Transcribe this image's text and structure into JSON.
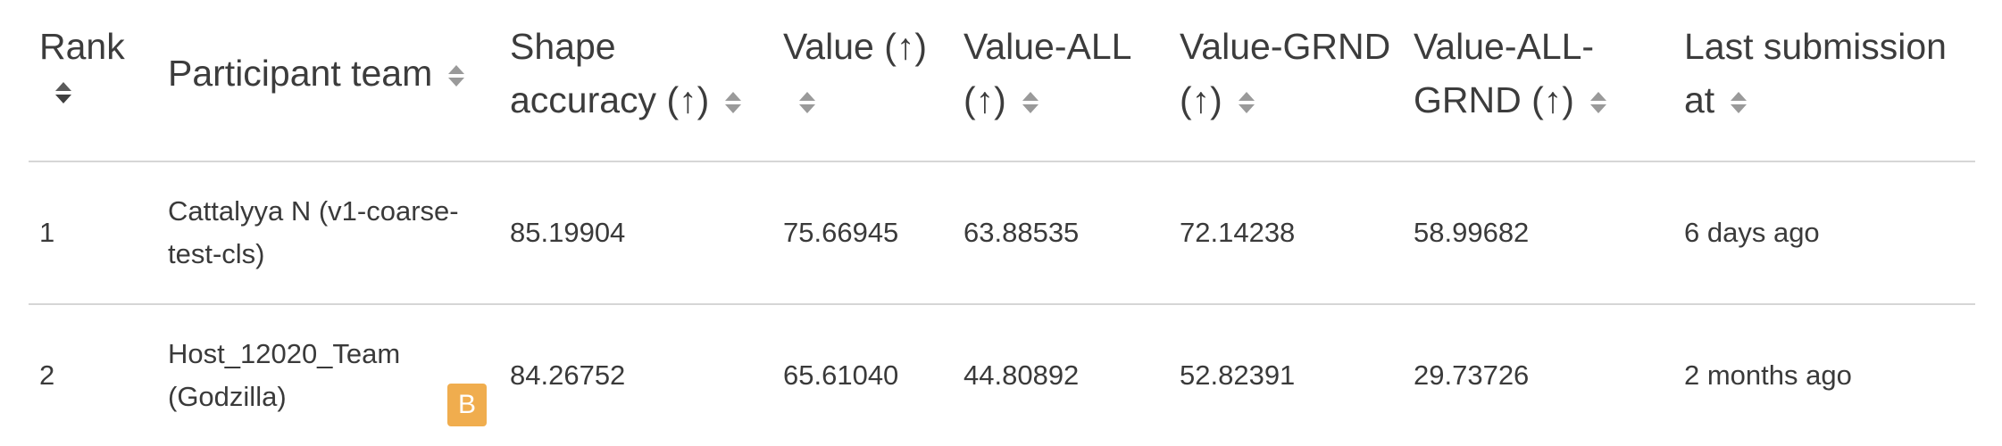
{
  "leaderboard": {
    "columns": [
      {
        "label": "Rank"
      },
      {
        "label": "Participant team"
      },
      {
        "label": "Shape accuracy (↑)"
      },
      {
        "label": "Value (↑)"
      },
      {
        "label": "Value-ALL (↑)"
      },
      {
        "label": "Value-GRND (↑)"
      },
      {
        "label": "Value-ALL-GRND (↑)"
      },
      {
        "label": "Last submission at"
      }
    ],
    "rows": [
      {
        "rank": "1",
        "team": "Cattalyya N (v1-coarse-test-cls)",
        "badge": "",
        "shape_accuracy": "85.19904",
        "value": "75.66945",
        "value_all": "63.88535",
        "value_grnd": "72.14238",
        "value_all_grnd": "58.99682",
        "last_submission": "6 days ago"
      },
      {
        "rank": "2",
        "team": "Host_12020_Team (Godzilla)",
        "badge": "B",
        "shape_accuracy": "84.26752",
        "value": "65.61040",
        "value_all": "44.80892",
        "value_grnd": "52.82391",
        "value_all_grnd": "29.73726",
        "last_submission": "2 months ago"
      }
    ]
  },
  "icons": {
    "sort": "sort-icon",
    "badge_color": "#f0ad4e",
    "rule_color": "#d6d6d6"
  }
}
